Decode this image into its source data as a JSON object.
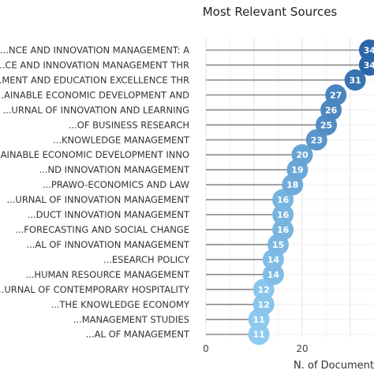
{
  "chart_data": {
    "type": "lollipop",
    "title": "Most Relevant Sources",
    "xlabel": "N. of Documents",
    "ylabel": "",
    "xlim": [
      0,
      34
    ],
    "xticks": [
      0,
      20
    ],
    "grid": true,
    "color_scale": [
      "#8ec9ef",
      "#2b67a8"
    ],
    "categories": [
      "...NCE AND INNOVATION MANAGEMENT: A",
      "...CE AND INNOVATION MANAGEMENT THR",
      "...MENT AND EDUCATION EXCELLENCE THR",
      "...AINABLE ECONOMIC DEVELOPMENT AND",
      "...URNAL OF INNOVATION AND LEARNING",
      "...OF BUSINESS RESEARCH",
      "...KNOWLEDGE MANAGEMENT",
      "...AINABLE ECONOMIC DEVELOPMENT INNO",
      "...ND INNOVATION MANAGEMENT",
      "...PRAWO-ECONOMICS AND LAW",
      "...URNAL OF INNOVATION MANAGEMENT",
      "...DUCT INNOVATION MANAGEMENT",
      "...FORECASTING AND SOCIAL CHANGE",
      "...AL OF INNOVATION MANAGEMENT",
      "...ESEARCH POLICY",
      "...HUMAN RESOURCE MANAGEMENT",
      "...URNAL OF CONTEMPORARY HOSPITALITY",
      "...THE KNOWLEDGE ECONOMY",
      "...MANAGEMENT STUDIES",
      "...AL OF MANAGEMENT"
    ],
    "values": [
      34,
      34,
      31,
      27,
      26,
      25,
      23,
      20,
      19,
      18,
      16,
      16,
      16,
      15,
      14,
      14,
      12,
      12,
      11,
      11
    ]
  }
}
